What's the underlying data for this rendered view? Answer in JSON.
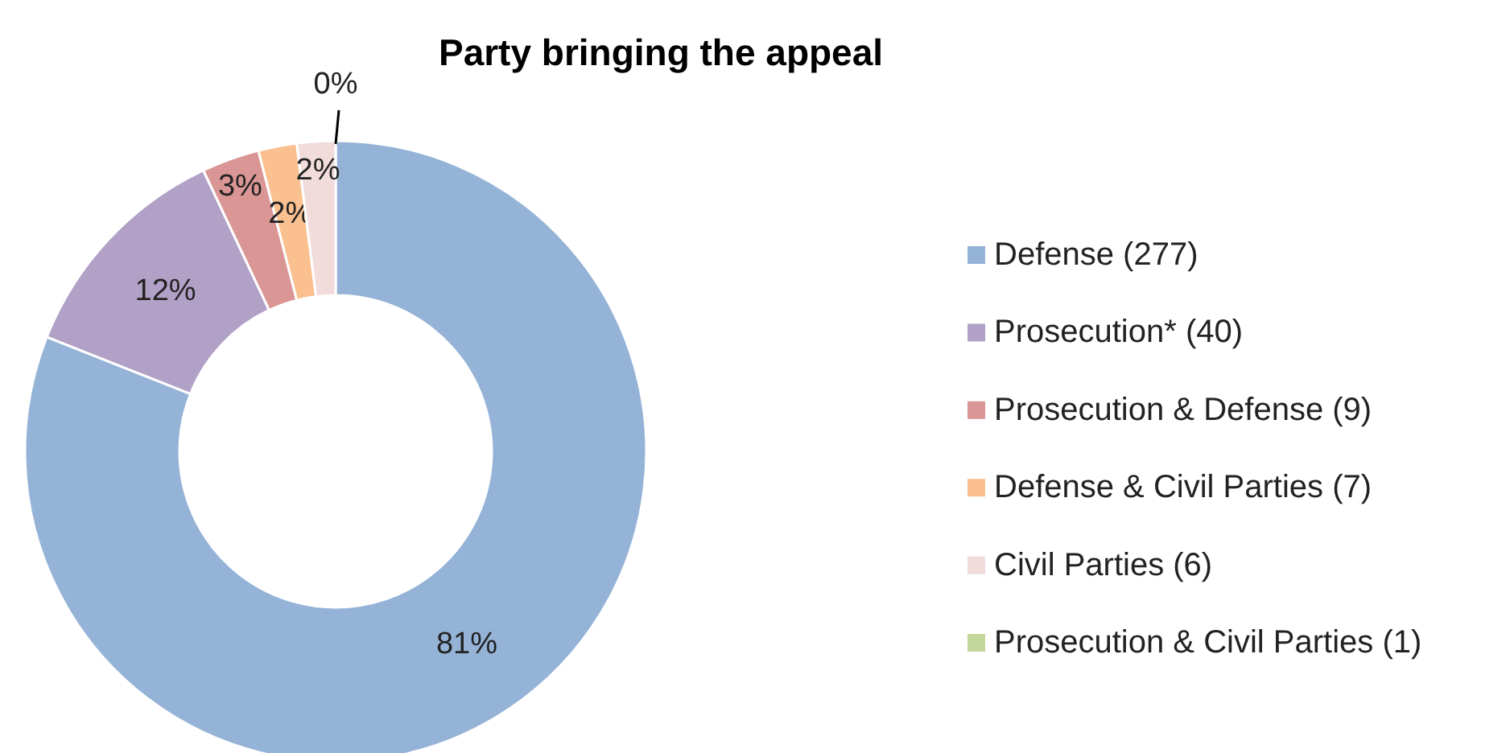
{
  "chart_data": {
    "type": "donut",
    "title": "Party bringing the appeal",
    "categories": [
      "Defense (277)",
      "Prosecution*  (40)",
      "Prosecution & Defense (9)",
      "Defense & Civil Parties (7)",
      "Civil Parties (6)",
      "Prosecution & Civil Parties (1)"
    ],
    "values": [
      81,
      12,
      3,
      2,
      2,
      0
    ],
    "value_labels": [
      "81%",
      "12%",
      "3%",
      "2%",
      "2%",
      "0%"
    ],
    "colors": [
      "#95b3d7",
      "#b2a1c7",
      "#d99694",
      "#fac090",
      "#f2dcdb",
      "#c3d69b"
    ],
    "legend": "right"
  }
}
